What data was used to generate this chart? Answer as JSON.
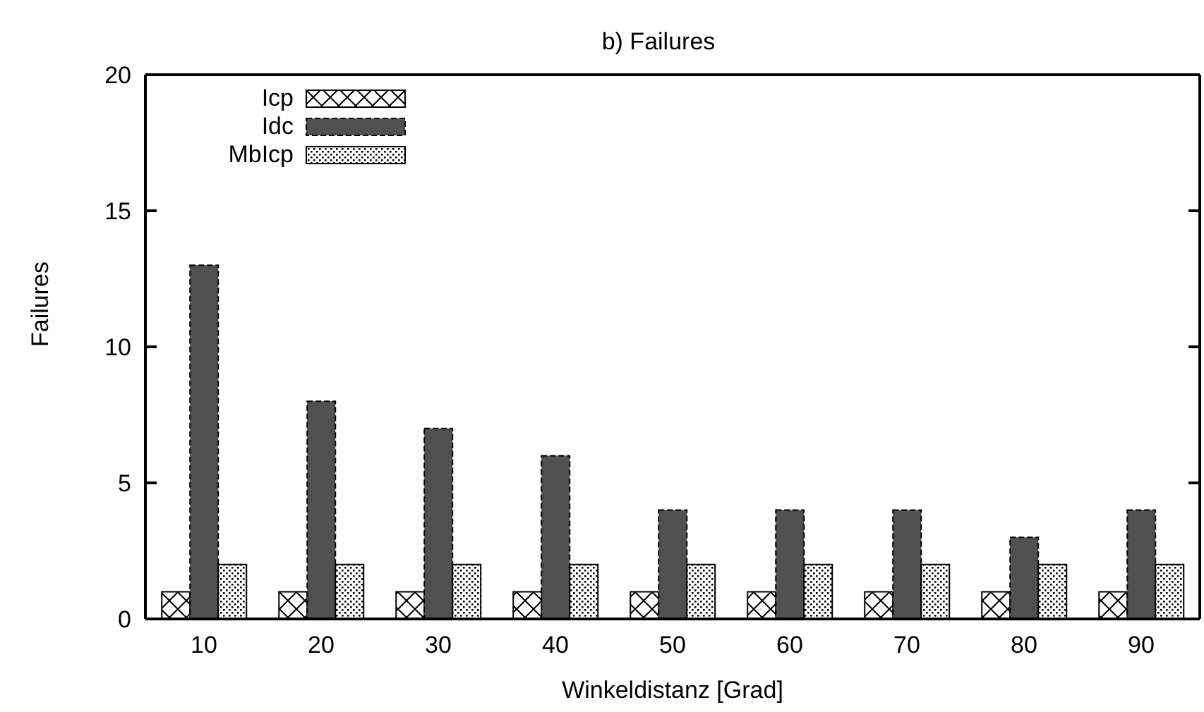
{
  "chart_data": {
    "type": "bar",
    "title": "b) Failures",
    "xlabel": "Winkeldistanz [Grad]",
    "ylabel": "Failures",
    "categories": [
      "10",
      "20",
      "30",
      "40",
      "50",
      "60",
      "70",
      "80",
      "90"
    ],
    "series": [
      {
        "name": "Icp",
        "color": "#000000",
        "values": [
          1,
          1,
          1,
          1,
          1,
          1,
          1,
          1,
          1
        ]
      },
      {
        "name": "Idc",
        "color": "#505050",
        "values": [
          13,
          8,
          7,
          6,
          4,
          4,
          4,
          3,
          4
        ]
      },
      {
        "name": "MbIcp",
        "color": "#000000",
        "values": [
          2,
          2,
          2,
          2,
          2,
          2,
          2,
          2,
          2
        ]
      }
    ],
    "ylim": [
      0,
      20
    ],
    "yticks": [
      0,
      5,
      10,
      15,
      20
    ],
    "grid": false,
    "legend": "top left"
  }
}
